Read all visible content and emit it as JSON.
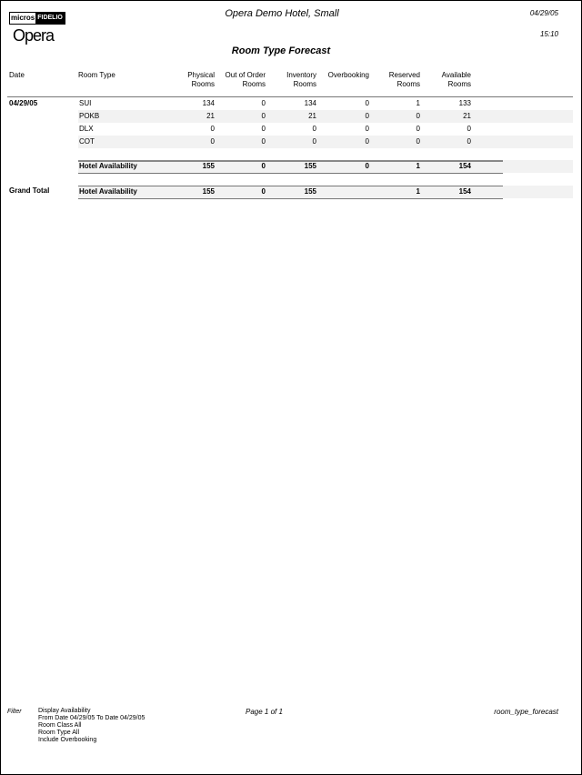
{
  "header": {
    "logo_micros": "micros",
    "logo_fidelio": "FIDELIO",
    "logo_opera": "Opera",
    "hotel": "Opera Demo Hotel, Small",
    "date": "04/29/05",
    "time": "15:10",
    "title": "Room Type Forecast"
  },
  "columns": {
    "date": "Date",
    "room_type": "Room Type",
    "numeric": [
      [
        "Physical",
        "Rooms"
      ],
      [
        "Out of Order",
        "Rooms"
      ],
      [
        "Inventory",
        "Rooms"
      ],
      [
        "Overbooking",
        ""
      ],
      [
        "Reserved",
        "Rooms"
      ],
      [
        "Available",
        "Rooms"
      ]
    ]
  },
  "group": {
    "date": "04/29/05",
    "rows": [
      {
        "room_type": "SUI",
        "values": [
          "134",
          "0",
          "134",
          "0",
          "1",
          "133"
        ]
      },
      {
        "room_type": "POKB",
        "values": [
          "21",
          "0",
          "21",
          "0",
          "0",
          "21"
        ]
      },
      {
        "room_type": "DLX",
        "values": [
          "0",
          "0",
          "0",
          "0",
          "0",
          "0"
        ]
      },
      {
        "room_type": "COT",
        "values": [
          "0",
          "0",
          "0",
          "0",
          "0",
          "0"
        ]
      }
    ],
    "subtotal": {
      "label": "Hotel Availability",
      "values": [
        "155",
        "0",
        "155",
        "0",
        "1",
        "154"
      ]
    }
  },
  "grand_total": {
    "label": "Grand Total",
    "row_label": "Hotel Availability",
    "values": [
      "155",
      "0",
      "155",
      "",
      "1",
      "154"
    ]
  },
  "footer": {
    "filter_label": "Filter",
    "filters": [
      "Display Availability",
      "From Date 04/29/05  To Date 04/29/05",
      "Room Class All",
      "Room Type All",
      "Include Overbooking"
    ],
    "page": "Page 1 of 1",
    "report_name": "room_type_forecast"
  }
}
